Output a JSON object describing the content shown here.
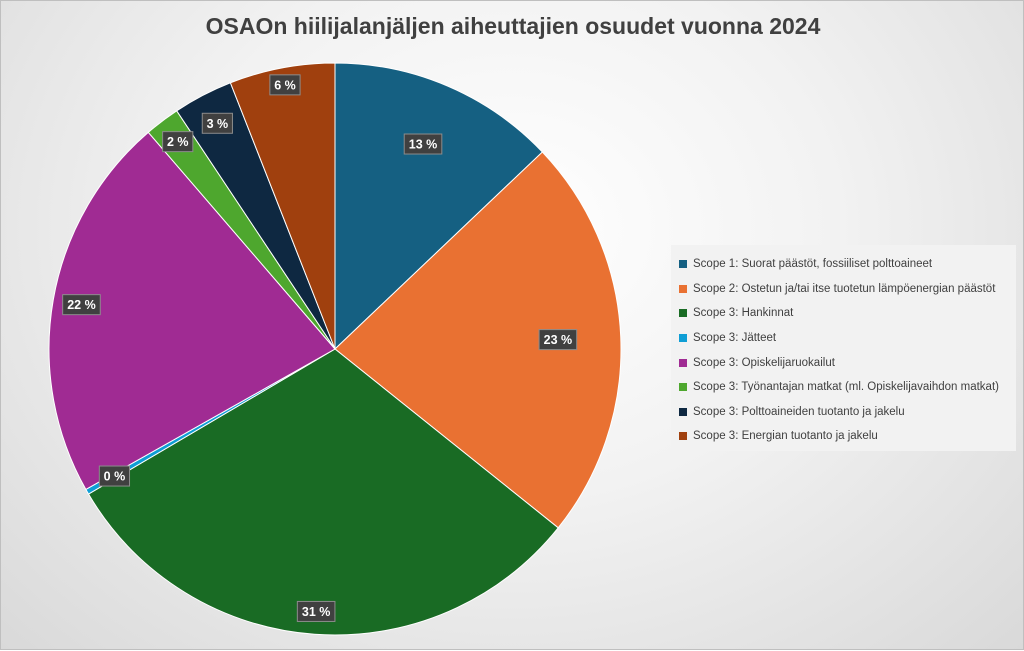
{
  "chart_data": {
    "type": "pie",
    "title": "OSAOn hiilijalanjäljen aiheuttajien osuudet vuonna 2024",
    "legend_position": "right",
    "slices": [
      {
        "name": "Scope 1: Suorat päästöt, fossiiliset polttoaineet",
        "value": 13,
        "label": "13 %",
        "color": "#156082"
      },
      {
        "name": "Scope 2: Ostetun ja/tai itse tuotetun lämpöenergian päästöt",
        "value": 23,
        "label": "23 %",
        "color": "#E97132"
      },
      {
        "name": "Scope 3: Hankinnat",
        "value": 31,
        "label": "31 %",
        "color": "#196B24"
      },
      {
        "name": "Scope 3: Jätteet",
        "value": 0.3,
        "label": "0 %",
        "color": "#0F9ED5"
      },
      {
        "name": "Scope 3: Opiskelijaruokailut",
        "value": 22,
        "label": "22 %",
        "color": "#A02B93"
      },
      {
        "name": "Scope 3: Työnantajan matkat (ml. Opiskelijavaihdon matkat)",
        "value": 2,
        "label": "2 %",
        "color": "#4EA72E"
      },
      {
        "name": "Scope 3: Polttoaineiden tuotanto ja jakelu",
        "value": 3.4,
        "label": "3 %",
        "color": "#0E2841"
      },
      {
        "name": "Scope 3: Energian tuotanto ja jakelu",
        "value": 6,
        "label": "6 %",
        "color": "#A0400E"
      }
    ]
  }
}
